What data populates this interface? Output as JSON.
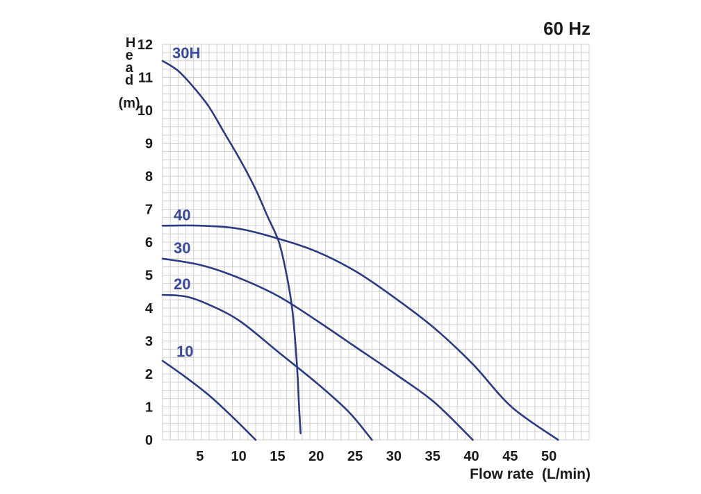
{
  "frequency_label": "60 Hz",
  "chart_data": {
    "type": "line",
    "title": "",
    "xlabel": "Flow rate  (L/min)",
    "ylabel_letters": [
      "H",
      "e",
      "a",
      "d"
    ],
    "ylabel_unit": "(m)",
    "xlim": [
      0,
      55
    ],
    "ylim": [
      0,
      12
    ],
    "x_ticks": [
      0,
      5,
      10,
      15,
      20,
      25,
      30,
      35,
      40,
      45,
      50
    ],
    "x_tick_labels": [
      "5",
      "10",
      "15",
      "20",
      "25",
      "30",
      "35",
      "40",
      "45",
      "50"
    ],
    "y_ticks": [
      0,
      1,
      2,
      3,
      4,
      5,
      6,
      7,
      8,
      9,
      10,
      11,
      12
    ],
    "y_tick_labels": [
      "0",
      "1",
      "2",
      "3",
      "4",
      "5",
      "6",
      "7",
      "8",
      "9",
      "10",
      "11",
      "12"
    ],
    "grid": true,
    "line_color": "#2b3a82",
    "label_color": "#3a4a98",
    "series": [
      {
        "name": "30H",
        "points": [
          [
            0,
            11.5
          ],
          [
            2,
            11.2
          ],
          [
            4,
            10.7
          ],
          [
            6,
            10.1
          ],
          [
            8,
            9.3
          ],
          [
            10,
            8.5
          ],
          [
            12,
            7.6
          ],
          [
            13.5,
            6.8
          ],
          [
            15,
            6.0
          ],
          [
            16,
            5.0
          ],
          [
            16.7,
            4.0
          ],
          [
            17.1,
            3.0
          ],
          [
            17.4,
            2.0
          ],
          [
            17.6,
            1.0
          ],
          [
            17.8,
            0.2
          ]
        ]
      },
      {
        "name": "40",
        "points": [
          [
            0,
            6.5
          ],
          [
            5,
            6.5
          ],
          [
            10,
            6.4
          ],
          [
            15,
            6.1
          ],
          [
            20,
            5.7
          ],
          [
            25,
            5.1
          ],
          [
            30,
            4.3
          ],
          [
            35,
            3.4
          ],
          [
            40,
            2.3
          ],
          [
            45,
            1.0
          ],
          [
            51,
            0.0
          ]
        ]
      },
      {
        "name": "30",
        "points": [
          [
            0,
            5.5
          ],
          [
            5,
            5.3
          ],
          [
            10,
            4.9
          ],
          [
            15,
            4.35
          ],
          [
            20,
            3.6
          ],
          [
            25,
            2.8
          ],
          [
            30,
            2.0
          ],
          [
            35,
            1.15
          ],
          [
            40,
            0.0
          ]
        ]
      },
      {
        "name": "20",
        "points": [
          [
            0,
            4.4
          ],
          [
            3,
            4.35
          ],
          [
            6,
            4.1
          ],
          [
            10,
            3.6
          ],
          [
            15,
            2.65
          ],
          [
            20,
            1.7
          ],
          [
            24,
            0.85
          ],
          [
            27,
            0.0
          ]
        ]
      },
      {
        "name": "10",
        "points": [
          [
            0,
            2.4
          ],
          [
            3,
            1.9
          ],
          [
            6,
            1.35
          ],
          [
            9,
            0.7
          ],
          [
            12,
            0.0
          ]
        ]
      }
    ]
  }
}
